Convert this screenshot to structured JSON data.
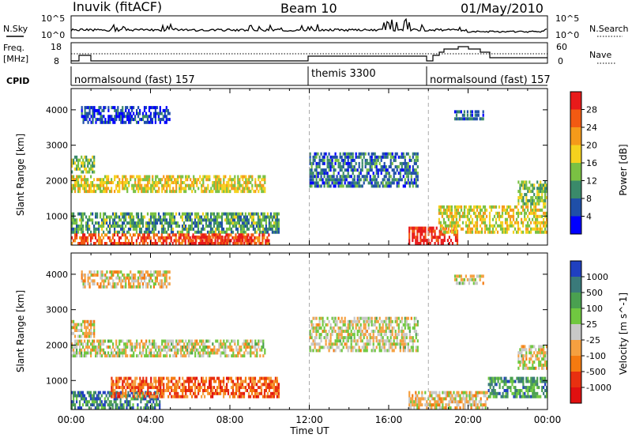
{
  "chart_data": {
    "type": "heatmap",
    "header": {
      "station": "Inuvik  (fitACF)",
      "beam": "Beam 10",
      "date": "01/May/2010"
    },
    "noise_panel": {
      "left_label": "N.Sky",
      "right_label": "N.Search",
      "ticks_left": [
        "10^5",
        "10^0"
      ],
      "ticks_right": [
        "10^5",
        "10^0"
      ]
    },
    "freq_panel": {
      "left_label_line1": "Freq.",
      "left_label_line2": "[MHz]",
      "right_label": "Nave",
      "ticks_left": [
        "18",
        "8"
      ],
      "ticks_right": [
        "60",
        "0"
      ],
      "ylim": [
        8,
        18
      ]
    },
    "cpid_panel": {
      "label": "CPID",
      "modes": [
        {
          "name": "normalsound (fast) 157",
          "start_hour": 0,
          "end_hour": 12
        },
        {
          "name": "themis 3300",
          "start_hour": 12,
          "end_hour": 18
        },
        {
          "name": "normalsound (fast) 157",
          "start_hour": 18,
          "end_hour": 24
        }
      ]
    },
    "x_axis": {
      "label": "Time UT",
      "ticks": [
        "00:00",
        "04:00",
        "08:00",
        "12:00",
        "16:00",
        "20:00",
        "00:00"
      ],
      "range_hours": [
        0,
        24
      ]
    },
    "y_axis": {
      "label": "Slant Range [km]",
      "ticks": [
        "1000",
        "2000",
        "3000",
        "4000"
      ],
      "range_km": [
        180,
        4600
      ]
    },
    "power_panel": {
      "colorbar_label": "Power [dB]",
      "colorbar_ticks": [
        "4",
        "8",
        "12",
        "16",
        "20",
        "24",
        "28"
      ],
      "colorbar_colors": [
        "#0000ff",
        "#1f4fa8",
        "#3a8a6a",
        "#7ac143",
        "#f5d21e",
        "#f59a1a",
        "#f25a12",
        "#e81a1a"
      ],
      "echo_regions": [
        {
          "t0": 0.0,
          "t1": 9.8,
          "r0": 1650,
          "r1": 2150,
          "level": 0.55
        },
        {
          "t0": 0.0,
          "t1": 1.2,
          "r0": 2200,
          "r1": 2700,
          "level": 0.45
        },
        {
          "t0": 0.0,
          "t1": 10.5,
          "r0": 500,
          "r1": 1100,
          "level": 0.35
        },
        {
          "t0": 0.0,
          "t1": 10.0,
          "r0": 180,
          "r1": 500,
          "level": 0.85
        },
        {
          "t0": 6.0,
          "t1": 9.0,
          "r0": 180,
          "r1": 450,
          "level": 0.95
        },
        {
          "t0": 0.5,
          "t1": 5.0,
          "r0": 3600,
          "r1": 4100,
          "level": 0.15
        },
        {
          "t0": 12.0,
          "t1": 17.5,
          "r0": 1800,
          "r1": 2800,
          "level": 0.25
        },
        {
          "t0": 17.0,
          "t1": 19.5,
          "r0": 180,
          "r1": 700,
          "level": 0.95
        },
        {
          "t0": 18.5,
          "t1": 24.0,
          "r0": 500,
          "r1": 1300,
          "level": 0.55
        },
        {
          "t0": 22.5,
          "t1": 24.0,
          "r0": 1300,
          "r1": 2000,
          "level": 0.45
        },
        {
          "t0": 19.3,
          "t1": 20.8,
          "r0": 3700,
          "r1": 4000,
          "level": 0.2
        }
      ]
    },
    "velocity_panel": {
      "colorbar_label": "Velocity  [m s^-1]",
      "colorbar_ticks": [
        "1000",
        "500",
        "100",
        "25",
        "-25",
        "-100",
        "-500",
        "-1000"
      ],
      "colorbar_colors": [
        "#2040c0",
        "#3a7a7a",
        "#4aa050",
        "#70c840",
        "#c8c8c8",
        "#f5a040",
        "#f57a10",
        "#e83010",
        "#e01010"
      ],
      "echo_regions": [
        {
          "t0": 0.0,
          "t1": 9.8,
          "r0": 1650,
          "r1": 2150,
          "level": 0.5
        },
        {
          "t0": 0.0,
          "t1": 1.2,
          "r0": 2200,
          "r1": 2700,
          "level": 0.45
        },
        {
          "t0": 0.0,
          "t1": 4.5,
          "r0": 180,
          "r1": 700,
          "level": 0.8
        },
        {
          "t0": 2.0,
          "t1": 10.5,
          "r0": 500,
          "r1": 1100,
          "level": 0.25
        },
        {
          "t0": 0.5,
          "t1": 5.0,
          "r0": 3600,
          "r1": 4100,
          "level": 0.45
        },
        {
          "t0": 12.0,
          "t1": 17.5,
          "r0": 1800,
          "r1": 2800,
          "level": 0.5
        },
        {
          "t0": 17.0,
          "t1": 21.0,
          "r0": 180,
          "r1": 700,
          "level": 0.45
        },
        {
          "t0": 21.0,
          "t1": 24.0,
          "r0": 500,
          "r1": 1100,
          "level": 0.75
        },
        {
          "t0": 22.5,
          "t1": 24.0,
          "r0": 1300,
          "r1": 2000,
          "level": 0.5
        },
        {
          "t0": 19.3,
          "t1": 20.8,
          "r0": 3700,
          "r1": 4000,
          "level": 0.5
        }
      ]
    },
    "colors": {
      "axis": "#000000",
      "dashed_mode_change": "#aaaaaa"
    }
  }
}
